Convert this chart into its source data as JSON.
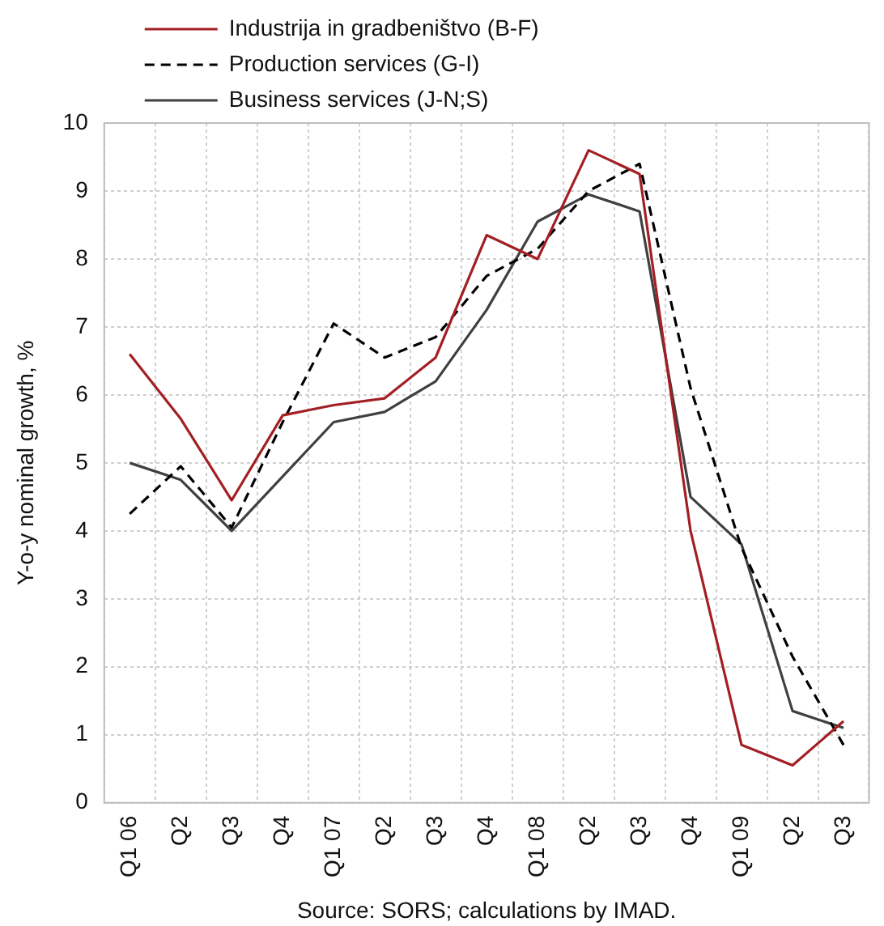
{
  "chart_data": {
    "type": "line",
    "ylabel": "Y-o-y nominal growth, %",
    "categories": [
      "Q1 06",
      "Q2",
      "Q3",
      "Q4",
      "Q1 07",
      "Q2",
      "Q3",
      "Q4",
      "Q1 08",
      "Q2",
      "Q3",
      "Q4",
      "Q1 09",
      "Q2",
      "Q3"
    ],
    "series": [
      {
        "name": "Industrija in gradbeništvo (B-F)",
        "color": "#a31f24",
        "line_style": "solid",
        "values": [
          6.6,
          5.65,
          4.45,
          5.7,
          5.85,
          5.95,
          6.55,
          8.35,
          8.0,
          9.6,
          9.25,
          4.0,
          0.85,
          0.55,
          1.2
        ]
      },
      {
        "name": "Production services (G-I)",
        "color": "#000000",
        "line_style": "dashed",
        "values": [
          4.25,
          4.95,
          4.05,
          5.6,
          7.05,
          6.55,
          6.85,
          7.75,
          8.15,
          9.0,
          9.4,
          6.1,
          3.75,
          2.15,
          0.85
        ]
      },
      {
        "name": "Business services (J-N;S)",
        "color": "#404040",
        "line_style": "solid",
        "values": [
          5.0,
          4.75,
          4.0,
          4.8,
          5.6,
          5.75,
          6.2,
          7.25,
          8.55,
          8.95,
          8.7,
          4.5,
          3.8,
          1.35,
          1.1
        ]
      }
    ],
    "ylim": [
      0,
      10
    ],
    "yticks": [
      0,
      1,
      2,
      3,
      4,
      5,
      6,
      7,
      8,
      9,
      10
    ],
    "grid": true,
    "legend": "top left",
    "marker": "none",
    "annotations": [
      "Source: SORS; calculations by IMAD."
    ]
  }
}
